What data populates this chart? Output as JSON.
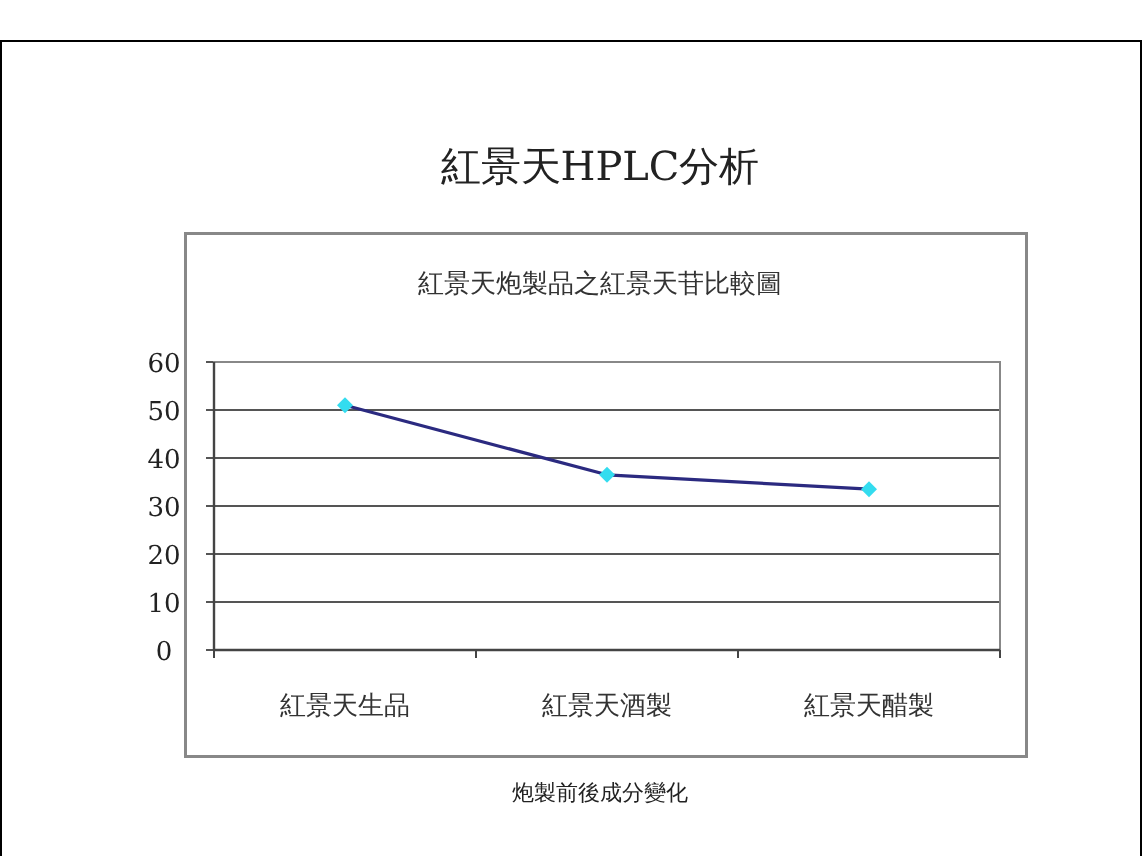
{
  "chart_data": {
    "type": "line",
    "title": "紅景天HPLC分析",
    "subtitle": "紅景天炮製品之紅景天苷比較圖",
    "categories": [
      "紅景天生品",
      "紅景天酒製",
      "紅景天醋製"
    ],
    "series": [
      {
        "color": "#2b2a80",
        "colors": [
          "#33dcef",
          "#33dcef",
          "#33dcef"
        ],
        "values": [
          51,
          36.5,
          33.5
        ]
      }
    ],
    "ylim": [
      0,
      60
    ],
    "yticks": [
      0,
      10,
      20,
      30,
      40,
      50,
      60
    ],
    "grid": "y",
    "marker": "diamond",
    "line_style": "solid",
    "annotations": [
      "炮製前後成分變化"
    ]
  }
}
